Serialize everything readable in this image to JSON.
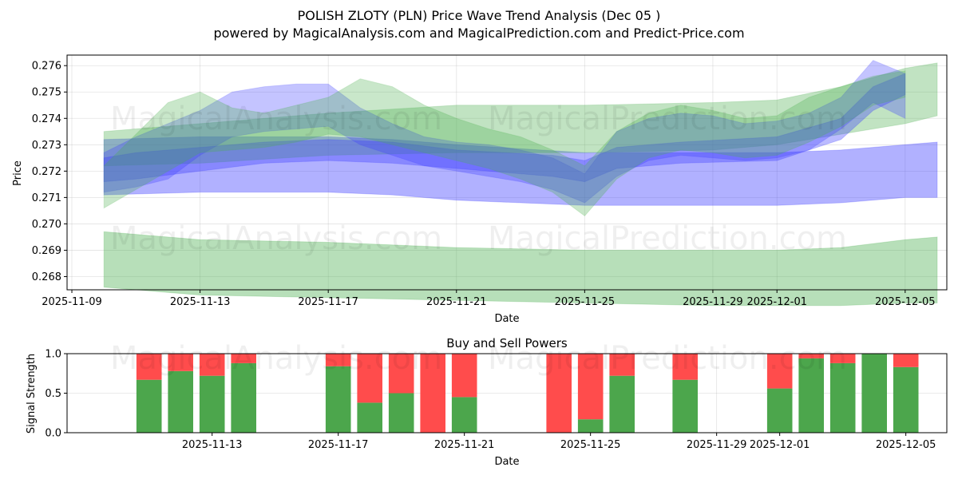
{
  "colors": {
    "green_band": "#4caf50",
    "blue_band": "#3b3bff",
    "buy": "#4ca64c",
    "sell": "#ff4c4c"
  },
  "watermarks": [
    "MagicalAnalysis.com",
    "MagicalPrediction.com"
  ],
  "chart_data": [
    {
      "type": "area",
      "title_line1": "POLISH ZLOTY (PLN) Price Wave Trend Analysis (Dec 05 )",
      "title_line2": "powered by MagicalAnalysis.com and MagicalPrediction.com and Predict-Price.com",
      "xlabel": "Date",
      "ylabel": "Price",
      "xlim": [
        "2025-11-09",
        "2025-12-06"
      ],
      "ylim": [
        0.2675,
        0.2764
      ],
      "x_ticks": [
        "2025-11-09",
        "2025-11-13",
        "2025-11-17",
        "2025-11-21",
        "2025-11-25",
        "2025-11-29",
        "2025-12-01",
        "2025-12-05"
      ],
      "y_ticks": [
        "0.268",
        "0.269",
        "0.270",
        "0.271",
        "0.272",
        "0.273",
        "0.274",
        "0.275",
        "0.276"
      ],
      "series": [
        {
          "name": "green lower band",
          "color": "green",
          "alpha": 0.4,
          "x": [
            "2025-11-10",
            "2025-11-13",
            "2025-11-17",
            "2025-11-21",
            "2025-11-25",
            "2025-11-29",
            "2025-12-01",
            "2025-12-03",
            "2025-12-05",
            "2025-12-06"
          ],
          "upper": [
            0.2697,
            0.2694,
            0.2693,
            0.2691,
            0.269,
            0.269,
            0.269,
            0.2691,
            0.2694,
            0.2695
          ],
          "lower": [
            0.2676,
            0.2673,
            0.2672,
            0.2671,
            0.267,
            0.2669,
            0.2669,
            0.2669,
            0.267,
            0.267
          ]
        },
        {
          "name": "blue wide band",
          "color": "blue",
          "alpha": 0.4,
          "x": [
            "2025-11-10",
            "2025-11-13",
            "2025-11-17",
            "2025-11-19",
            "2025-11-21",
            "2025-11-25",
            "2025-11-29",
            "2025-12-01",
            "2025-12-03",
            "2025-12-05",
            "2025-12-06"
          ],
          "upper": [
            0.2732,
            0.2733,
            0.2733,
            0.2732,
            0.273,
            0.2727,
            0.2727,
            0.2727,
            0.2728,
            0.273,
            0.2731
          ],
          "lower": [
            0.2711,
            0.2712,
            0.2712,
            0.2711,
            0.2709,
            0.2707,
            0.2707,
            0.2707,
            0.2708,
            0.271,
            0.271
          ]
        },
        {
          "name": "green wide band",
          "color": "green",
          "alpha": 0.35,
          "x": [
            "2025-11-10",
            "2025-11-13",
            "2025-11-17",
            "2025-11-21",
            "2025-11-25",
            "2025-11-29",
            "2025-12-01",
            "2025-12-03",
            "2025-12-05",
            "2025-12-06"
          ],
          "upper": [
            0.2735,
            0.2738,
            0.2742,
            0.2745,
            0.2745,
            0.2746,
            0.2747,
            0.2752,
            0.2759,
            0.2761
          ],
          "lower": [
            0.2722,
            0.2723,
            0.2726,
            0.2727,
            0.2727,
            0.2728,
            0.273,
            0.2734,
            0.2738,
            0.2741
          ]
        },
        {
          "name": "blue trend band",
          "color": "blue",
          "alpha": 0.35,
          "x": [
            "2025-11-10",
            "2025-11-11",
            "2025-11-13",
            "2025-11-15",
            "2025-11-17",
            "2025-11-19",
            "2025-11-21",
            "2025-11-24",
            "2025-11-25",
            "2025-11-26",
            "2025-11-28",
            "2025-12-01",
            "2025-12-03",
            "2025-12-04",
            "2025-12-05"
          ],
          "upper": [
            0.2725,
            0.2727,
            0.2729,
            0.2731,
            0.2732,
            0.2731,
            0.2728,
            0.2726,
            0.2724,
            0.2729,
            0.2731,
            0.2733,
            0.274,
            0.2752,
            0.2757
          ],
          "lower": [
            0.2716,
            0.2717,
            0.272,
            0.2723,
            0.2724,
            0.2723,
            0.2721,
            0.2718,
            0.2716,
            0.2721,
            0.2723,
            0.2724,
            0.2732,
            0.2743,
            0.2749
          ]
        },
        {
          "name": "blue wave",
          "color": "blue",
          "alpha": 0.3,
          "x": [
            "2025-11-10",
            "2025-11-11",
            "2025-11-12",
            "2025-11-13",
            "2025-11-14",
            "2025-11-15",
            "2025-11-16",
            "2025-11-17",
            "2025-11-18",
            "2025-11-19",
            "2025-11-20",
            "2025-11-21",
            "2025-11-22",
            "2025-11-23",
            "2025-11-24",
            "2025-11-25",
            "2025-11-26",
            "2025-11-27",
            "2025-11-28",
            "2025-11-29",
            "2025-11-30",
            "2025-12-01",
            "2025-12-02",
            "2025-12-03",
            "2025-12-04",
            "2025-12-05"
          ],
          "upper": [
            0.2727,
            0.2733,
            0.2738,
            0.2743,
            0.275,
            0.2752,
            0.2753,
            0.2753,
            0.2744,
            0.2738,
            0.2733,
            0.2731,
            0.273,
            0.2728,
            0.2725,
            0.2719,
            0.2735,
            0.274,
            0.2742,
            0.2741,
            0.2738,
            0.2739,
            0.2742,
            0.2748,
            0.2762,
            0.2757
          ],
          "lower": [
            0.2712,
            0.2714,
            0.2717,
            0.2726,
            0.2733,
            0.2735,
            0.2736,
            0.2737,
            0.273,
            0.2726,
            0.2722,
            0.272,
            0.2718,
            0.2716,
            0.2713,
            0.2708,
            0.2718,
            0.2724,
            0.2726,
            0.2725,
            0.2724,
            0.2725,
            0.2728,
            0.2736,
            0.2746,
            0.274
          ]
        },
        {
          "name": "green wave",
          "color": "green",
          "alpha": 0.3,
          "x": [
            "2025-11-10",
            "2025-11-11",
            "2025-11-12",
            "2025-11-13",
            "2025-11-14",
            "2025-11-15",
            "2025-11-16",
            "2025-11-17",
            "2025-11-18",
            "2025-11-19",
            "2025-11-20",
            "2025-11-21",
            "2025-11-22",
            "2025-11-23",
            "2025-11-24",
            "2025-11-25",
            "2025-11-26",
            "2025-11-27",
            "2025-11-28",
            "2025-11-29",
            "2025-11-30",
            "2025-12-01",
            "2025-12-02",
            "2025-12-03",
            "2025-12-04",
            "2025-12-05"
          ],
          "upper": [
            0.2722,
            0.2734,
            0.2746,
            0.275,
            0.2744,
            0.2742,
            0.2745,
            0.2748,
            0.2755,
            0.2752,
            0.2745,
            0.274,
            0.2736,
            0.2733,
            0.2728,
            0.2722,
            0.2735,
            0.2742,
            0.2745,
            0.2743,
            0.274,
            0.2741,
            0.2748,
            0.2752,
            0.2756,
            0.2758
          ],
          "lower": [
            0.2706,
            0.2713,
            0.272,
            0.2727,
            0.2728,
            0.2729,
            0.2731,
            0.2734,
            0.2733,
            0.273,
            0.2727,
            0.2724,
            0.2721,
            0.2717,
            0.2712,
            0.2703,
            0.2717,
            0.2725,
            0.2728,
            0.2727,
            0.2725,
            0.2726,
            0.2731,
            0.2737,
            0.2745,
            0.2748
          ]
        }
      ]
    },
    {
      "type": "bar",
      "title": "Buy and Sell Powers",
      "xlabel": "Date",
      "ylabel": "Signal Strength",
      "ylim": [
        0,
        1
      ],
      "y_ticks": [
        "0.0",
        "0.5",
        "1.0"
      ],
      "x_ticks": [
        "2025-11-13",
        "2025-11-17",
        "2025-11-21",
        "2025-11-25",
        "2025-11-29",
        "2025-12-01",
        "2025-12-05"
      ],
      "categories": [
        "2025-11-11",
        "2025-11-12",
        "2025-11-13",
        "2025-11-14",
        "2025-11-17",
        "2025-11-18",
        "2025-11-19",
        "2025-11-20",
        "2025-11-21",
        "2025-11-24",
        "2025-11-25",
        "2025-11-26",
        "2025-11-28",
        "2025-12-01",
        "2025-12-02",
        "2025-12-03",
        "2025-12-04",
        "2025-12-05"
      ],
      "series": [
        {
          "name": "Buy",
          "values": [
            0.67,
            0.78,
            0.72,
            0.88,
            0.84,
            0.38,
            0.5,
            0.0,
            0.45,
            0.0,
            0.17,
            0.72,
            0.67,
            0.56,
            0.94,
            0.88,
            1.0,
            0.83
          ]
        },
        {
          "name": "Sell",
          "values": [
            0.33,
            0.22,
            0.28,
            0.12,
            0.16,
            0.62,
            0.5,
            1.0,
            0.55,
            1.0,
            0.83,
            0.28,
            0.33,
            0.44,
            0.06,
            0.12,
            0.0,
            0.17
          ]
        }
      ]
    }
  ]
}
